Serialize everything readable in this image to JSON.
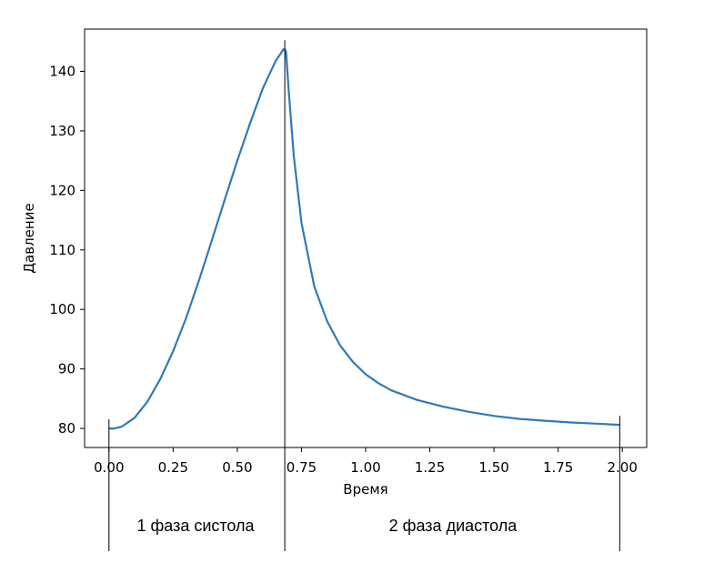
{
  "chart_data": {
    "type": "line",
    "xlabel": "Время",
    "ylabel": "Давление",
    "xlim": [
      -0.095,
      2.095
    ],
    "ylim": [
      76.8,
      147.1
    ],
    "x_ticks": [
      0.0,
      0.25,
      0.5,
      0.75,
      1.0,
      1.25,
      1.5,
      1.75,
      2.0
    ],
    "x_tick_labels": [
      "0.00",
      "0.25",
      "0.50",
      "0.75",
      "1.00",
      "1.25",
      "1.50",
      "1.75",
      "2.00"
    ],
    "y_ticks": [
      80,
      90,
      100,
      110,
      120,
      130,
      140
    ],
    "y_tick_labels": [
      "80",
      "90",
      "100",
      "110",
      "120",
      "130",
      "140"
    ],
    "grid": false,
    "series": [
      {
        "color": "#2e7ab8",
        "x": [
          0.0,
          0.02,
          0.05,
          0.1,
          0.15,
          0.2,
          0.25,
          0.3,
          0.35,
          0.4,
          0.45,
          0.5,
          0.55,
          0.6,
          0.65,
          0.68,
          0.685,
          0.69,
          0.7,
          0.72,
          0.75,
          0.8,
          0.85,
          0.9,
          0.95,
          1.0,
          1.05,
          1.1,
          1.2,
          1.3,
          1.4,
          1.5,
          1.6,
          1.7,
          1.8,
          1.9,
          1.99
        ],
        "y": [
          80.0,
          80.0,
          80.3,
          81.8,
          84.5,
          88.3,
          93.0,
          98.5,
          104.8,
          111.5,
          118.3,
          125.0,
          131.3,
          137.2,
          141.8,
          143.7,
          143.7,
          143.3,
          137.0,
          125.8,
          114.5,
          103.8,
          98.0,
          94.0,
          91.2,
          89.1,
          87.6,
          86.4,
          84.8,
          83.7,
          82.8,
          82.1,
          81.6,
          81.3,
          81.0,
          80.8,
          80.6
        ]
      }
    ],
    "markers": [
      {
        "x": 0.0,
        "label": ""
      },
      {
        "x": 0.685,
        "label": ""
      },
      {
        "x": 1.99,
        "label": ""
      }
    ],
    "phases": [
      {
        "label": "1 фаза систола"
      },
      {
        "label": "2 фаза диастола"
      }
    ]
  }
}
